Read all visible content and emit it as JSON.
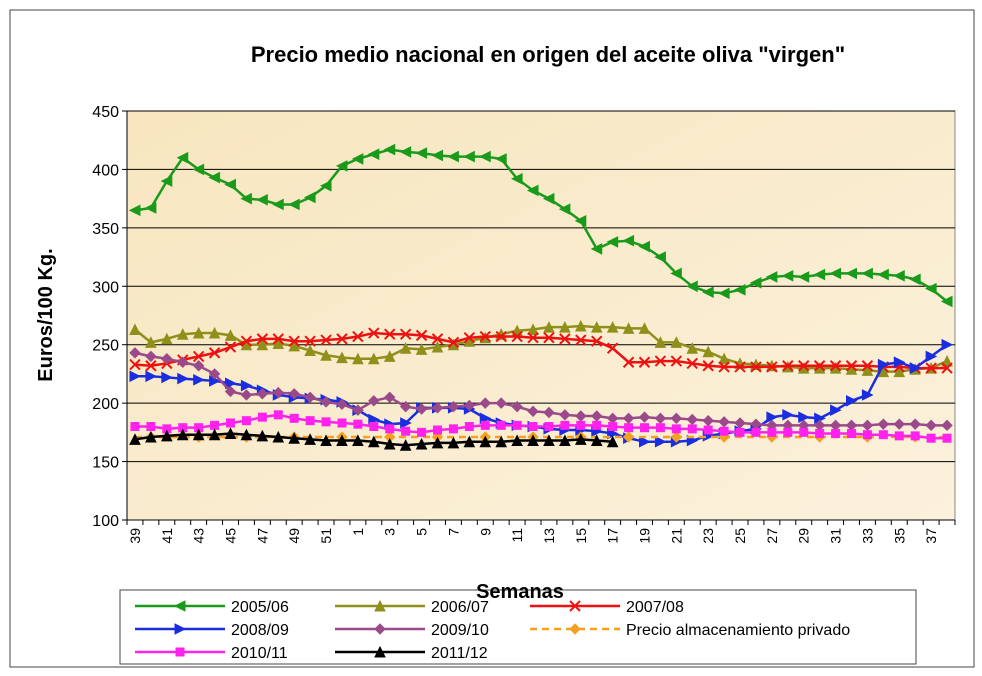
{
  "chart_data": {
    "type": "line",
    "title": "Precio medio nacional en origen del aceite oliva \"virgen\"",
    "x_label": "Semanas",
    "y_label": "Euros/100 Kg.",
    "categories": [
      39,
      null,
      41,
      null,
      43,
      null,
      45,
      null,
      47,
      null,
      49,
      null,
      51,
      null,
      1,
      null,
      3,
      null,
      5,
      null,
      7,
      null,
      9,
      null,
      11,
      null,
      13,
      null,
      15,
      null,
      17,
      null,
      19,
      null,
      21,
      null,
      23,
      null,
      25,
      null,
      27,
      null,
      29,
      null,
      31,
      null,
      33,
      null,
      35,
      null,
      37,
      null
    ],
    "ylim": [
      100,
      450
    ],
    "yticks": [
      100,
      150,
      200,
      250,
      300,
      350,
      400,
      450
    ],
    "grid": true,
    "series": [
      {
        "name": "2005/06",
        "color": "#1a9a1a",
        "marker": "triangle-left",
        "values": [
          365,
          367,
          390,
          410,
          400,
          393,
          387,
          375,
          374,
          370,
          370,
          376,
          386,
          403,
          409,
          413,
          417,
          415,
          414,
          412,
          411,
          411,
          411,
          409,
          392,
          382,
          375,
          366,
          356,
          332,
          338,
          339,
          334,
          325,
          311,
          300,
          295,
          294,
          297,
          303,
          308,
          309,
          308,
          310,
          311,
          311,
          311,
          310,
          309,
          306,
          298,
          287
        ]
      },
      {
        "name": "2006/07",
        "color": "#8f8f1a",
        "marker": "triangle-up",
        "values": [
          263,
          252,
          255,
          259,
          260,
          260,
          258,
          250,
          250,
          251,
          249,
          245,
          241,
          239,
          238,
          238,
          240,
          247,
          246,
          248,
          250,
          253,
          256,
          259,
          262,
          263,
          265,
          265,
          266,
          265,
          265,
          264,
          264,
          252,
          252,
          247,
          244,
          238,
          234,
          233,
          232,
          231,
          230,
          230,
          230,
          229,
          228,
          227,
          227,
          229,
          230,
          236
        ]
      },
      {
        "name": "2007/08",
        "color": "#ee1111",
        "marker": "cross",
        "values": [
          233,
          232,
          234,
          237,
          240,
          243,
          248,
          253,
          255,
          255,
          253,
          253,
          254,
          255,
          257,
          260,
          259,
          259,
          258,
          255,
          252,
          256,
          257,
          257,
          257,
          256,
          256,
          255,
          254,
          253,
          247,
          235,
          235,
          236,
          236,
          234,
          232,
          231,
          231,
          231,
          231,
          232,
          232,
          232,
          232,
          232,
          232,
          231,
          231,
          230,
          230,
          230
        ]
      },
      {
        "name": "2008/09",
        "color": "#1a2ee0",
        "marker": "triangle-right",
        "values": [
          223,
          223,
          222,
          221,
          220,
          219,
          217,
          215,
          211,
          207,
          205,
          204,
          203,
          201,
          194,
          186,
          182,
          183,
          196,
          196,
          196,
          195,
          187,
          183,
          181,
          180,
          178,
          177,
          177,
          176,
          174,
          170,
          167,
          167,
          167,
          168,
          172,
          174,
          176,
          178,
          188,
          190,
          188,
          187,
          194,
          202,
          207,
          233,
          235,
          230,
          240,
          250
        ]
      },
      {
        "name": "2009/10",
        "color": "#9a4a8a",
        "marker": "diamond",
        "values": [
          243,
          240,
          238,
          235,
          232,
          225,
          210,
          207,
          208,
          209,
          208,
          205,
          201,
          199,
          194,
          202,
          205,
          197,
          195,
          196,
          197,
          198,
          200,
          200,
          197,
          193,
          192,
          190,
          189,
          189,
          187,
          187,
          188,
          187,
          187,
          186,
          185,
          184,
          183,
          182,
          181,
          181,
          181,
          181,
          181,
          181,
          181,
          182,
          182,
          182,
          181,
          181
        ]
      },
      {
        "name": "Precio almacenamiento privado",
        "color": "#f5a020",
        "marker": "diamond",
        "dashed": true,
        "values": [
          171,
          171,
          171,
          171,
          171,
          171,
          171,
          171,
          171,
          171,
          171,
          171,
          171,
          171,
          171,
          171,
          171,
          171,
          171,
          171,
          171,
          171,
          171,
          171,
          171,
          171,
          171,
          171,
          171,
          171,
          171,
          171,
          171,
          171,
          171,
          171,
          171,
          171,
          171,
          171,
          171,
          171,
          171,
          171,
          171,
          171,
          171,
          171,
          171,
          171,
          171,
          171
        ]
      },
      {
        "name": "2010/11",
        "color": "#ff22ee",
        "marker": "square",
        "values": [
          180,
          180,
          178,
          179,
          179,
          181,
          183,
          185,
          188,
          190,
          187,
          185,
          184,
          183,
          182,
          180,
          178,
          176,
          175,
          177,
          178,
          180,
          181,
          181,
          181,
          180,
          180,
          181,
          181,
          181,
          180,
          179,
          179,
          179,
          178,
          178,
          177,
          176,
          175,
          175,
          175,
          175,
          175,
          174,
          174,
          174,
          173,
          173,
          172,
          172,
          170,
          170
        ]
      },
      {
        "name": "2011/12",
        "color": "#000000",
        "marker": "triangle-up",
        "values": [
          169,
          171,
          172,
          173,
          173,
          173,
          174,
          173,
          172,
          171,
          170,
          169,
          168,
          168,
          168,
          167,
          165,
          164,
          165,
          166,
          166,
          167,
          167,
          167,
          168,
          168,
          168,
          168,
          169,
          168,
          167,
          null,
          null,
          null,
          null,
          null,
          null,
          null,
          null,
          null,
          null,
          null,
          null,
          null,
          null,
          null,
          null,
          null,
          null,
          null,
          null,
          null
        ]
      }
    ]
  }
}
